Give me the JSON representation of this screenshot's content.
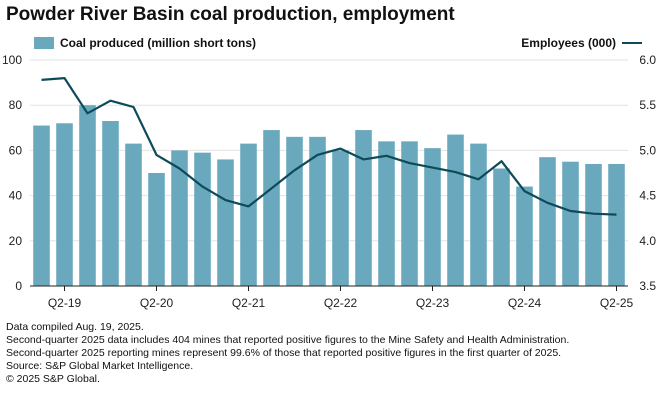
{
  "title": "Powder River Basin coal production, employment",
  "legend": {
    "bars_label": "Coal produced (million short tons)",
    "line_label": "Employees (000)"
  },
  "colors": {
    "bar": "#6aa8bd",
    "line": "#0d4b5a",
    "grid": "#e3e3e3",
    "axis": "#222222"
  },
  "chart_data": {
    "type": "bar+line",
    "title": "Powder River Basin coal production, employment",
    "categories": [
      "Q1-19",
      "Q2-19",
      "Q3-19",
      "Q4-19",
      "Q1-20",
      "Q2-20",
      "Q3-20",
      "Q4-20",
      "Q1-21",
      "Q2-21",
      "Q3-21",
      "Q4-21",
      "Q1-22",
      "Q2-22",
      "Q3-22",
      "Q4-22",
      "Q1-23",
      "Q2-23",
      "Q3-23",
      "Q4-23",
      "Q1-24",
      "Q2-24",
      "Q3-24",
      "Q4-24",
      "Q1-25",
      "Q2-25"
    ],
    "x_tick_labels": [
      "Q2-19",
      "Q2-20",
      "Q2-21",
      "Q2-22",
      "Q2-23",
      "Q2-24",
      "Q2-25"
    ],
    "x_tick_indices": [
      1,
      5,
      9,
      13,
      17,
      21,
      25
    ],
    "series": [
      {
        "name": "Coal produced (million short tons)",
        "axis": "left",
        "kind": "bar",
        "values": [
          71,
          72,
          80,
          73,
          63,
          50,
          60,
          59,
          56,
          63,
          69,
          66,
          66,
          60,
          69,
          64,
          64,
          61,
          67,
          63,
          52,
          44,
          57,
          55,
          54,
          54
        ]
      },
      {
        "name": "Employees (000)",
        "axis": "right",
        "kind": "line",
        "values": [
          5.78,
          5.8,
          5.41,
          5.55,
          5.48,
          4.95,
          4.8,
          4.6,
          4.45,
          4.38,
          4.58,
          4.78,
          4.95,
          5.02,
          4.9,
          4.94,
          4.86,
          4.81,
          4.76,
          4.68,
          4.88,
          4.55,
          4.42,
          4.33,
          4.3,
          4.29
        ]
      }
    ],
    "left_axis": {
      "ylim": [
        0,
        100
      ],
      "ticks": [
        0,
        20,
        40,
        60,
        80,
        100
      ]
    },
    "right_axis": {
      "ylim": [
        3.5,
        6.0
      ],
      "ticks": [
        "3.5",
        "4.0",
        "4.5",
        "5.0",
        "5.5",
        "6.0"
      ]
    },
    "grid": true
  },
  "notes": [
    "Data compiled Aug. 19, 2025.",
    "Second-quarter 2025 data includes 404 mines that reported positive figures to the Mine Safety and Health Administration.",
    "Second-quarter 2025 reporting mines represent 99.6% of those that reported positive figures in the first quarter of 2025.",
    "Source: S&P Global Market Intelligence.",
    "© 2025 S&P Global."
  ]
}
